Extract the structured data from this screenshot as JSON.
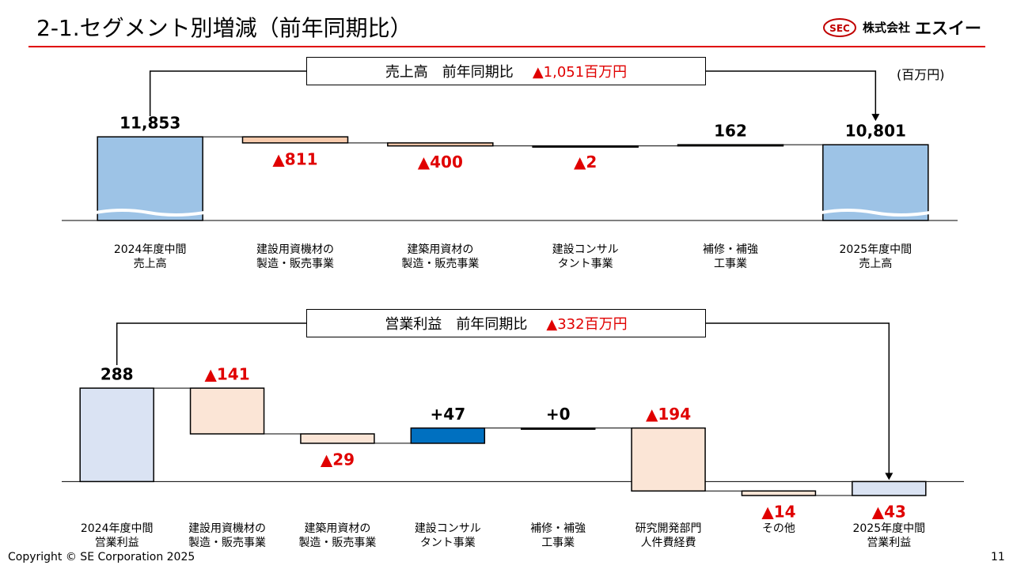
{
  "header": {
    "title": "2-1.セグメント別増減（前年同期比）",
    "logo_mark": "SEC",
    "company": "株式会社",
    "company_name": "エスイー"
  },
  "unit": "(百万円)",
  "chart_data": [
    {
      "type": "waterfall",
      "summary_label": "売上高　前年同期比",
      "summary_value": "▲1,051百万円",
      "categories": [
        "2024年度中間\n売上高",
        "建設用資機材の\n製造・販売事業",
        "建築用資材の\n製造・販売事業",
        "建設コンサル\nタント事業",
        "補修・補強\n工事業",
        "2025年度中間\n売上高"
      ],
      "values": [
        11853,
        -811,
        -400,
        -2,
        162,
        10801
      ],
      "value_labels": [
        "11,853",
        "▲811",
        "▲400",
        "▲2",
        "162",
        "10,801"
      ],
      "colors": [
        "#9dc3e6",
        "#f8cbad",
        "#f8cbad",
        "#f8cbad",
        "#f8cbad",
        "#9dc3e6"
      ],
      "ylim": [
        700,
        12500
      ],
      "axis_break": true
    },
    {
      "type": "waterfall",
      "summary_label": "営業利益　前年同期比",
      "summary_value": "▲332百万円",
      "categories": [
        "2024年度中間\n営業利益",
        "建設用資機材の\n製造・販売事業",
        "建築用資材の\n製造・販売事業",
        "建設コンサル\nタント事業",
        "補修・補強\n工事業",
        "研究開発部門\n人件費経費",
        "その他",
        "2025年度中間\n営業利益"
      ],
      "values": [
        288,
        -141,
        -29,
        47,
        0,
        -194,
        -14,
        -43
      ],
      "value_labels": [
        "288",
        "▲141",
        "▲29",
        "+47",
        "+0",
        "▲194",
        "▲14",
        "▲43"
      ],
      "colors": [
        "#dae3f3",
        "#fbe5d6",
        "#fbe5d6",
        "#0070c0",
        "#fbe5d6",
        "#fbe5d6",
        "#fbe5d6",
        "#dae3f3"
      ],
      "ylim": [
        -60,
        320
      ],
      "axis_break": false
    }
  ],
  "footer": {
    "copyright": "Copyright © SE Corporation 2025",
    "page": "11"
  }
}
